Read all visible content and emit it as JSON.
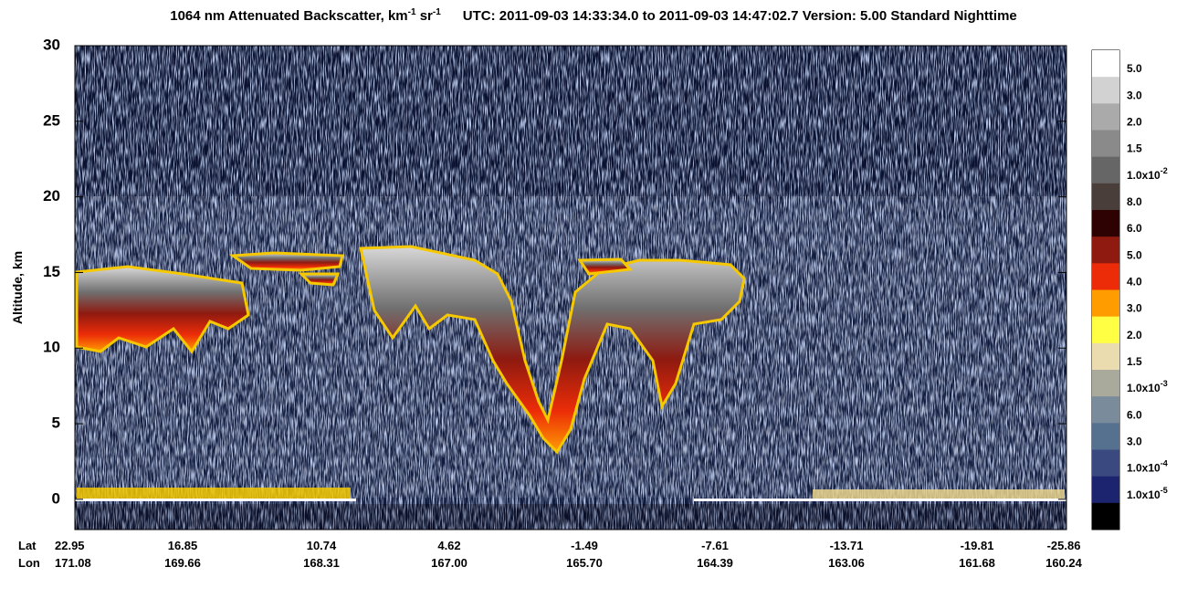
{
  "chart_data": {
    "type": "heatmap",
    "title_parts": [
      "1064 nm Attenuated Backscatter, km",
      "-1",
      " sr",
      "-1"
    ],
    "subtitle": "UTC:  2011-09-03 14:33:34.0  to  2011-09-03 14:47:02.7    Version: 5.00  Standard  Nighttime",
    "ylabel": "Altitude, km",
    "ylim": [
      -2,
      30
    ],
    "yticks": [
      0,
      5,
      10,
      15,
      20,
      25,
      30
    ],
    "x_rows": [
      {
        "name": "Lat",
        "labels": [
          "22.95",
          "16.85",
          "10.74",
          "4.62",
          "-1.49",
          "-7.61",
          "-13.71",
          "-19.81",
          "-25.86"
        ]
      },
      {
        "name": "Lon",
        "labels": [
          "171.08",
          "169.66",
          "168.31",
          "167.00",
          "165.70",
          "164.39",
          "163.06",
          "161.68",
          "160.24"
        ]
      }
    ],
    "colorbar": {
      "colors": [
        "#ffffff",
        "#d2d2d2",
        "#aaaaaa",
        "#8a8a8a",
        "#666666",
        "#4a3e3a",
        "#2e0202",
        "#8e1a10",
        "#ec2c08",
        "#ff9c00",
        "#ffff44",
        "#eadcae",
        "#a9aa9c",
        "#7a8b9c",
        "#56708f",
        "#3a4a80",
        "#1c2470",
        "#000000"
      ],
      "labels": [
        {
          "text": "5.0"
        },
        {
          "text": "3.0"
        },
        {
          "text": "2.0"
        },
        {
          "text": "1.5"
        },
        {
          "text": "1.0x10",
          "sup": "-2"
        },
        {
          "text": "8.0"
        },
        {
          "text": "6.0"
        },
        {
          "text": "5.0"
        },
        {
          "text": "4.0"
        },
        {
          "text": "3.0"
        },
        {
          "text": "2.0"
        },
        {
          "text": "1.5"
        },
        {
          "text": "1.0x10",
          "sup": "-3"
        },
        {
          "text": "6.0"
        },
        {
          "text": "3.0"
        },
        {
          "text": "1.0x10",
          "sup": "-4"
        },
        {
          "text": "1.0x10",
          "sup": "-5"
        }
      ]
    }
  }
}
